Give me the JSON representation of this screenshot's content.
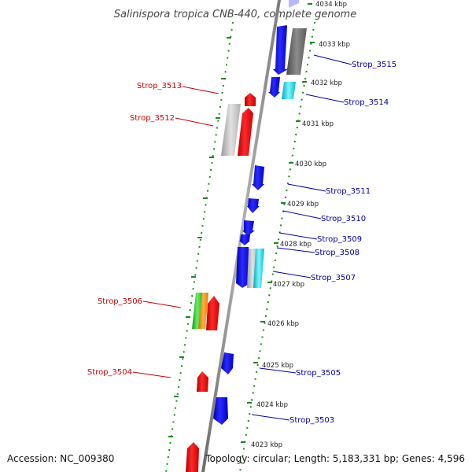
{
  "title": "Salinispora tropica CNB-440, complete genome",
  "footer": {
    "accession": "Accession: NC_009380",
    "summary": "Topology: circular; Length: 5,183,331 bp; Genes: 4,596"
  },
  "colors": {
    "forward": "#0000ee",
    "reverse": "#ee0000",
    "forward_label": "#00009e",
    "reverse_label": "#cc0000",
    "backbone": "#8a8a8a",
    "ruler": "#1a8a1a"
  },
  "kbp_ticks": [
    "4034 kbp",
    "4033 kbp",
    "4032 kbp",
    "4031 kbp",
    "4030 kbp",
    "4029 kbp",
    "4028 kbp",
    "4027 kbp",
    "4026 kbp",
    "4025 kbp",
    "4024 kbp",
    "4023 kbp"
  ],
  "forward_labels": [
    "Strop_3515",
    "Strop_3514",
    "Strop_3511",
    "Strop_3510",
    "Strop_3509",
    "Strop_3508",
    "Strop_3507",
    "Strop_3505",
    "Strop_3503"
  ],
  "reverse_labels": [
    "Strop_3513",
    "Strop_3512",
    "Strop_3506",
    "Strop_3504"
  ]
}
